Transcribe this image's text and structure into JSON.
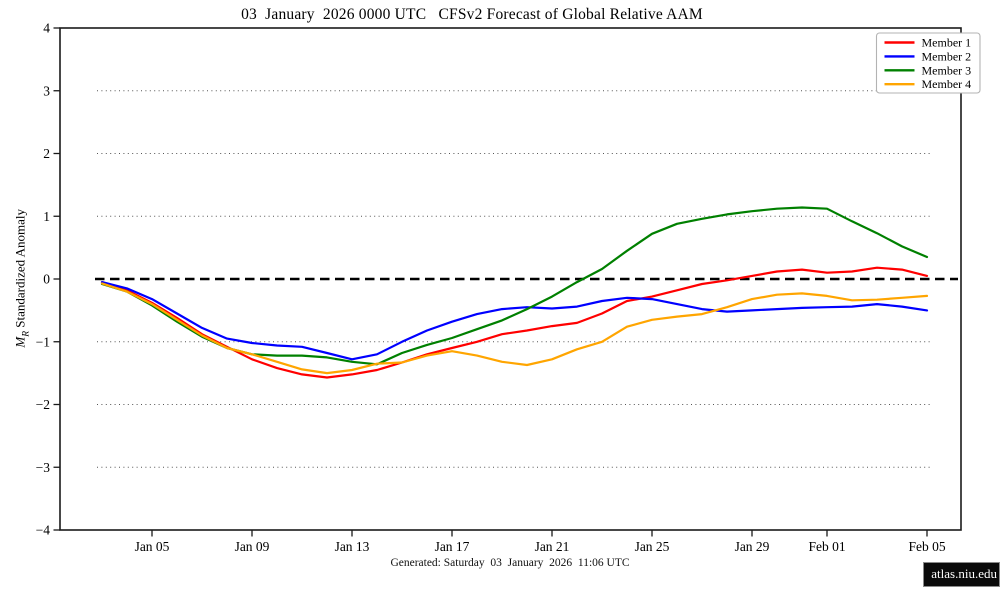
{
  "title": "03  January  2026 0000 UTC   CFSv2 Forecast of Global Relative AAM",
  "footer": "Generated: Saturday  03  January  2026  11:06 UTC",
  "badge": "atlas.niu.edu",
  "chart_data": {
    "type": "line",
    "title": "03  January  2026 0000 UTC   CFSv2 Forecast of Global Relative AAM",
    "ylabel": {
      "variable": "M",
      "subscript": "R",
      "text": " Standardized Anomaly"
    },
    "xlabel": "",
    "ylim": [
      -4,
      4
    ],
    "yticks": [
      -4,
      -3,
      -2,
      -1,
      0,
      1,
      2,
      3,
      4
    ],
    "grid": "horizontal dotted gray at -3,-2,-1,1,2,3; thick black dashed reference at 0",
    "legend_position": "upper right",
    "x_start_label": "Jan 03",
    "x_step_days": 1,
    "x_total_days": 33,
    "x_tick_labels": [
      "Jan 05",
      "Jan 09",
      "Jan 13",
      "Jan 17",
      "Jan 21",
      "Jan 25",
      "Jan 29",
      "Feb 01",
      "Feb 05"
    ],
    "x_tick_days": [
      2,
      6,
      10,
      14,
      18,
      22,
      26,
      29,
      33
    ],
    "zero_line_color": "#000000",
    "grid_color": "#555555",
    "series": [
      {
        "name": "Member 1",
        "color": "#ff0000",
        "values": [
          -0.05,
          -0.18,
          -0.38,
          -0.62,
          -0.88,
          -1.08,
          -1.28,
          -1.42,
          -1.52,
          -1.57,
          -1.52,
          -1.45,
          -1.33,
          -1.2,
          -1.1,
          -1.0,
          -0.88,
          -0.82,
          -0.75,
          -0.7,
          -0.55,
          -0.35,
          -0.28,
          -0.18,
          -0.08,
          -0.02,
          0.05,
          0.12,
          0.15,
          0.1,
          0.12,
          0.18,
          0.15,
          0.05
        ]
      },
      {
        "name": "Member 2",
        "color": "#0000ff",
        "values": [
          -0.05,
          -0.15,
          -0.32,
          -0.55,
          -0.78,
          -0.95,
          -1.02,
          -1.06,
          -1.08,
          -1.18,
          -1.28,
          -1.2,
          -1.0,
          -0.82,
          -0.68,
          -0.56,
          -0.48,
          -0.45,
          -0.47,
          -0.44,
          -0.35,
          -0.3,
          -0.32,
          -0.4,
          -0.48,
          -0.52,
          -0.5,
          -0.48,
          -0.46,
          -0.45,
          -0.44,
          -0.4,
          -0.44,
          -0.5
        ]
      },
      {
        "name": "Member 3",
        "color": "#008000",
        "values": [
          -0.08,
          -0.2,
          -0.42,
          -0.68,
          -0.92,
          -1.1,
          -1.2,
          -1.22,
          -1.22,
          -1.25,
          -1.32,
          -1.36,
          -1.18,
          -1.05,
          -0.94,
          -0.8,
          -0.66,
          -0.48,
          -0.28,
          -0.05,
          0.16,
          0.45,
          0.72,
          0.88,
          0.96,
          1.03,
          1.08,
          1.12,
          1.14,
          1.12,
          0.92,
          0.73,
          0.52,
          0.35
        ]
      },
      {
        "name": "Member 4",
        "color": "#ffa500",
        "values": [
          -0.07,
          -0.2,
          -0.4,
          -0.65,
          -0.9,
          -1.1,
          -1.2,
          -1.32,
          -1.44,
          -1.5,
          -1.45,
          -1.35,
          -1.33,
          -1.22,
          -1.15,
          -1.22,
          -1.32,
          -1.37,
          -1.28,
          -1.12,
          -1.0,
          -0.76,
          -0.65,
          -0.6,
          -0.56,
          -0.45,
          -0.32,
          -0.25,
          -0.23,
          -0.27,
          -0.34,
          -0.33,
          -0.3,
          -0.27
        ]
      }
    ]
  }
}
